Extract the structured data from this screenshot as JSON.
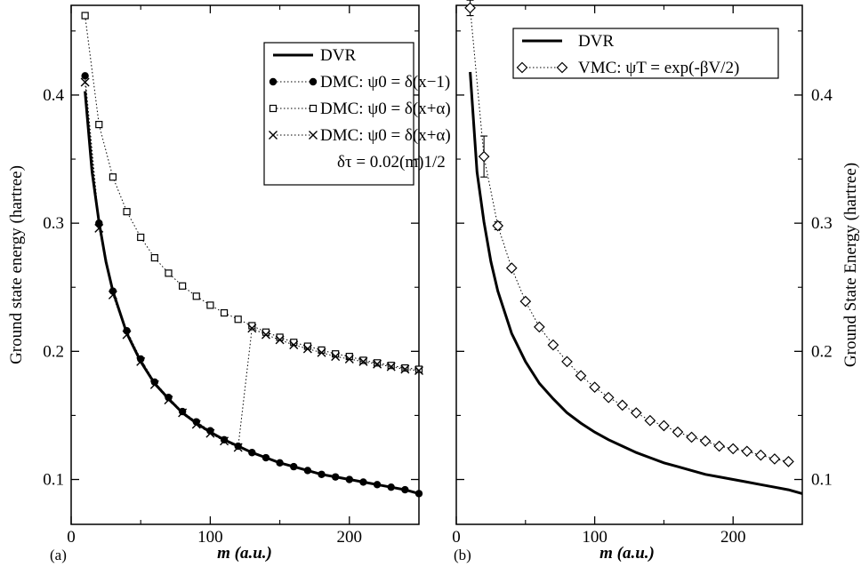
{
  "chart_data": [
    {
      "type": "line",
      "panel": "(a)",
      "xlabel": "m  (a.u.)",
      "ylabel": "Ground state energy (hartree)",
      "xlim": [
        0,
        250
      ],
      "ylim": [
        0.065,
        0.47
      ],
      "x_ticks": [
        "0",
        "100",
        "200"
      ],
      "y_ticks": [
        "0.1",
        "0.2",
        "0.3",
        "0.4"
      ],
      "grid": false,
      "legend_position": "top-right",
      "legend": [
        {
          "label": "DVR",
          "series": "DVR"
        },
        {
          "label": "DMC: ψ0 = δ(x−1)",
          "series": "DMC_delta_x_minus_1"
        },
        {
          "label": "DMC: ψ0 = δ(x+α)",
          "series": "DMC_delta_x_plus_alpha"
        },
        {
          "label": "DMC: ψ0 = δ(x+α)",
          "series": "DMC_delta_x_plus_alpha_scaled_dt"
        },
        {
          "label": "δτ = 0.02(m)1/2",
          "series": ""
        }
      ],
      "series": [
        {
          "name": "DVR",
          "style": "solid",
          "x": [
            10,
            15,
            20,
            25,
            30,
            40,
            50,
            60,
            70,
            80,
            90,
            100,
            110,
            120,
            130,
            140,
            150,
            160,
            170,
            180,
            190,
            200,
            210,
            220,
            230,
            240,
            250
          ],
          "y": [
            0.403,
            0.34,
            0.301,
            0.27,
            0.247,
            0.214,
            0.192,
            0.175,
            0.163,
            0.152,
            0.144,
            0.137,
            0.131,
            0.126,
            0.121,
            0.117,
            0.113,
            0.11,
            0.107,
            0.104,
            0.102,
            0.1,
            0.098,
            0.096,
            0.094,
            0.092,
            0.089
          ]
        },
        {
          "name": "DMC_delta_x_minus_1",
          "style": "dotted-filled-circle",
          "x": [
            10,
            20,
            30,
            40,
            50,
            60,
            70,
            80,
            90,
            100,
            110,
            120,
            130,
            140,
            150,
            160,
            170,
            180,
            190,
            200,
            210,
            220,
            230,
            240,
            250
          ],
          "y": [
            0.415,
            0.3,
            0.247,
            0.216,
            0.194,
            0.176,
            0.164,
            0.153,
            0.145,
            0.138,
            0.131,
            0.126,
            0.121,
            0.117,
            0.113,
            0.11,
            0.107,
            0.104,
            0.102,
            0.1,
            0.098,
            0.096,
            0.094,
            0.092,
            0.089
          ]
        },
        {
          "name": "DMC_delta_x_plus_alpha",
          "style": "dotted-open-square",
          "x": [
            10,
            20,
            30,
            40,
            50,
            60,
            70,
            80,
            90,
            100,
            110,
            120,
            130,
            140,
            150,
            160,
            170,
            180,
            190,
            200,
            210,
            220,
            230,
            240,
            250
          ],
          "y": [
            0.462,
            0.377,
            0.336,
            0.309,
            0.289,
            0.273,
            0.261,
            0.251,
            0.243,
            0.236,
            0.23,
            0.225,
            0.22,
            0.215,
            0.211,
            0.207,
            0.204,
            0.201,
            0.198,
            0.196,
            0.193,
            0.191,
            0.189,
            0.187,
            0.186
          ]
        },
        {
          "name": "DMC_delta_x_plus_alpha_scaled_dt",
          "style": "dotted-cross",
          "x": [
            10,
            20,
            30,
            40,
            50,
            60,
            70,
            80,
            90,
            100,
            110,
            120,
            130,
            140,
            150,
            160,
            170,
            180,
            190,
            200,
            210,
            220,
            230,
            240,
            250
          ],
          "y": [
            0.41,
            0.296,
            0.244,
            0.213,
            0.192,
            0.174,
            0.162,
            0.152,
            0.143,
            0.136,
            0.13,
            0.125,
            0.218,
            0.213,
            0.209,
            0.205,
            0.202,
            0.199,
            0.196,
            0.194,
            0.192,
            0.19,
            0.188,
            0.186,
            0.185
          ]
        }
      ],
      "annotations": [
        {
          "type": "connector-line",
          "from": [
            120,
            0.125
          ],
          "to": [
            130,
            0.218
          ]
        }
      ]
    },
    {
      "type": "line",
      "panel": "(b)",
      "xlabel": "m (a.u.)",
      "ylabel": "Ground State Energy (hartree)",
      "xlim": [
        0,
        250
      ],
      "ylim": [
        0.065,
        0.47
      ],
      "x_ticks": [
        "0",
        "100",
        "200"
      ],
      "y_ticks": [
        "0.1",
        "0.2",
        "0.3",
        "0.4"
      ],
      "grid": false,
      "legend_position": "top-right",
      "legend": [
        {
          "label": "DVR",
          "series": "DVR"
        },
        {
          "label": "VMC: ψT = exp(-βV/2)",
          "series": "VMC"
        }
      ],
      "series": [
        {
          "name": "DVR",
          "style": "solid",
          "x": [
            10,
            15,
            20,
            25,
            30,
            40,
            50,
            60,
            70,
            80,
            90,
            100,
            110,
            120,
            130,
            140,
            150,
            160,
            170,
            180,
            190,
            200,
            210,
            220,
            230,
            240,
            250
          ],
          "y": [
            0.418,
            0.34,
            0.301,
            0.27,
            0.247,
            0.214,
            0.192,
            0.175,
            0.163,
            0.152,
            0.144,
            0.137,
            0.131,
            0.126,
            0.121,
            0.117,
            0.113,
            0.11,
            0.107,
            0.104,
            0.102,
            0.1,
            0.098,
            0.096,
            0.094,
            0.092,
            0.089
          ]
        },
        {
          "name": "VMC",
          "style": "dotted-open-diamond",
          "x": [
            10,
            20,
            30,
            40,
            50,
            60,
            70,
            80,
            90,
            100,
            110,
            120,
            130,
            140,
            150,
            160,
            170,
            180,
            190,
            200,
            210,
            220,
            230,
            240
          ],
          "y": [
            0.468,
            0.352,
            0.298,
            0.265,
            0.239,
            0.219,
            0.205,
            0.192,
            0.181,
            0.172,
            0.164,
            0.158,
            0.152,
            0.146,
            0.142,
            0.137,
            0.133,
            0.13,
            0.126,
            0.124,
            0.122,
            0.119,
            0.116,
            0.114
          ],
          "error": [
            0.006,
            0.016,
            0.003,
            0.0,
            0.0,
            0.0,
            0.0,
            0.0,
            0.0,
            0.0,
            0.0,
            0.0,
            0.0,
            0.0,
            0.0,
            0.0,
            0.0,
            0.0,
            0.0,
            0.0,
            0.0,
            0.0,
            0.0,
            0.0
          ]
        }
      ]
    }
  ]
}
